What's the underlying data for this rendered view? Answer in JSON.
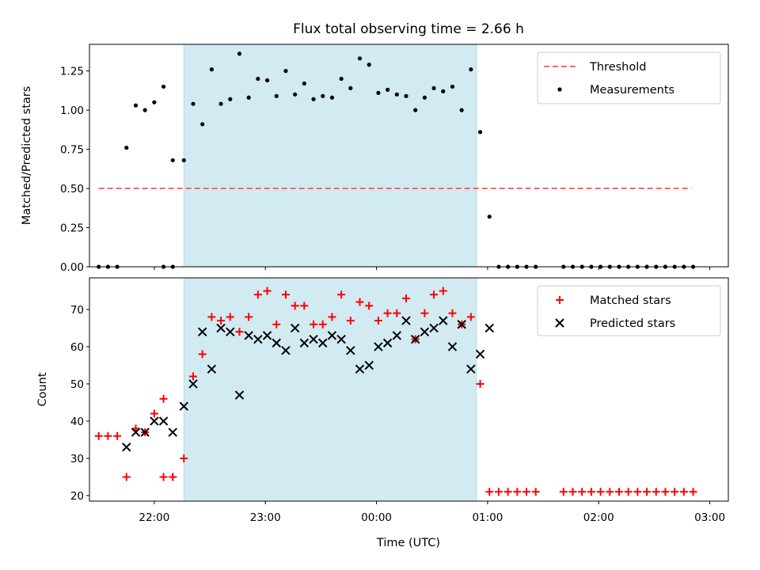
{
  "chart_data": {
    "title": "Flux total observing time = 2.66 h",
    "xlabel": "Time (UTC)",
    "x_ticks": [
      "22:00",
      "23:00",
      "00:00",
      "01:00",
      "02:00",
      "03:00"
    ],
    "x_range": [
      "21:25",
      "03:10"
    ],
    "highlight_span": {
      "start": "22:16",
      "end": "00:54",
      "color": "#add8e6"
    },
    "panels": [
      {
        "type": "scatter",
        "ylabel": "Matched/Predicted stars",
        "ylim": [
          0,
          1.42
        ],
        "y_ticks": [
          0.0,
          0.25,
          0.5,
          0.75,
          1.0,
          1.25
        ],
        "threshold": {
          "name": "Threshold",
          "value": 0.5,
          "x_start": "21:30",
          "x_end": "02:50",
          "color": "#ff6666"
        },
        "series": [
          {
            "name": "Measurements",
            "color": "#000000",
            "points": [
              [
                "21:30",
                0
              ],
              [
                "21:35",
                0
              ],
              [
                "21:40",
                0
              ],
              [
                "21:45",
                0.76
              ],
              [
                "21:50",
                1.03
              ],
              [
                "21:55",
                1.0
              ],
              [
                "22:00",
                1.05
              ],
              [
                "22:05",
                1.15
              ],
              [
                "22:10",
                0.68
              ],
              [
                "22:05",
                0
              ],
              [
                "22:10",
                0
              ],
              [
                "22:16",
                0.68
              ],
              [
                "22:21",
                1.04
              ],
              [
                "22:26",
                0.91
              ],
              [
                "22:31",
                1.26
              ],
              [
                "22:36",
                1.04
              ],
              [
                "22:41",
                1.07
              ],
              [
                "22:46",
                1.36
              ],
              [
                "22:51",
                1.08
              ],
              [
                "22:56",
                1.2
              ],
              [
                "23:01",
                1.19
              ],
              [
                "23:06",
                1.09
              ],
              [
                "23:11",
                1.25
              ],
              [
                "23:16",
                1.1
              ],
              [
                "23:21",
                1.17
              ],
              [
                "23:26",
                1.07
              ],
              [
                "23:31",
                1.09
              ],
              [
                "23:36",
                1.08
              ],
              [
                "23:41",
                1.2
              ],
              [
                "23:46",
                1.14
              ],
              [
                "23:51",
                1.33
              ],
              [
                "23:56",
                1.29
              ],
              [
                "00:01",
                1.11
              ],
              [
                "00:06",
                1.13
              ],
              [
                "00:11",
                1.1
              ],
              [
                "00:16",
                1.09
              ],
              [
                "00:21",
                1.0
              ],
              [
                "00:26",
                1.08
              ],
              [
                "00:31",
                1.14
              ],
              [
                "00:36",
                1.12
              ],
              [
                "00:41",
                1.15
              ],
              [
                "00:46",
                1.0
              ],
              [
                "00:51",
                1.26
              ],
              [
                "00:56",
                0.86
              ],
              [
                "01:01",
                0.32
              ],
              [
                "01:06",
                0
              ],
              [
                "01:11",
                0
              ],
              [
                "01:16",
                0
              ],
              [
                "01:21",
                0
              ],
              [
                "01:26",
                0
              ],
              [
                "01:41",
                0
              ],
              [
                "01:46",
                0
              ],
              [
                "01:51",
                0
              ],
              [
                "01:56",
                0
              ],
              [
                "02:01",
                0
              ],
              [
                "02:06",
                0
              ],
              [
                "02:11",
                0
              ],
              [
                "02:16",
                0
              ],
              [
                "02:21",
                0
              ],
              [
                "02:26",
                0
              ],
              [
                "02:31",
                0
              ],
              [
                "02:36",
                0
              ],
              [
                "02:41",
                0
              ],
              [
                "02:46",
                0
              ],
              [
                "02:51",
                0
              ]
            ]
          }
        ]
      },
      {
        "type": "scatter",
        "ylabel": "Count",
        "ylim": [
          18.5,
          78.5
        ],
        "y_ticks": [
          20,
          30,
          40,
          50,
          60,
          70
        ],
        "series": [
          {
            "name": "Matched stars",
            "color": "#ff0000",
            "points": [
              [
                "21:30",
                36
              ],
              [
                "21:35",
                36
              ],
              [
                "21:40",
                36
              ],
              [
                "21:45",
                25
              ],
              [
                "21:50",
                38
              ],
              [
                "21:55",
                37
              ],
              [
                "22:00",
                42
              ],
              [
                "22:05",
                46
              ],
              [
                "22:10",
                25
              ],
              [
                "22:05",
                25
              ],
              [
                "22:10",
                25
              ],
              [
                "22:16",
                30
              ],
              [
                "22:21",
                52
              ],
              [
                "22:26",
                58
              ],
              [
                "22:31",
                68
              ],
              [
                "22:36",
                67
              ],
              [
                "22:41",
                68
              ],
              [
                "22:46",
                64
              ],
              [
                "22:51",
                68
              ],
              [
                "22:56",
                74
              ],
              [
                "23:01",
                75
              ],
              [
                "23:06",
                66
              ],
              [
                "23:11",
                74
              ],
              [
                "23:16",
                71
              ],
              [
                "23:21",
                71
              ],
              [
                "23:26",
                66
              ],
              [
                "23:31",
                66
              ],
              [
                "23:36",
                68
              ],
              [
                "23:41",
                74
              ],
              [
                "23:46",
                67
              ],
              [
                "23:51",
                72
              ],
              [
                "23:56",
                71
              ],
              [
                "00:01",
                67
              ],
              [
                "00:06",
                69
              ],
              [
                "00:11",
                69
              ],
              [
                "00:16",
                73
              ],
              [
                "00:21",
                62
              ],
              [
                "00:26",
                69
              ],
              [
                "00:31",
                74
              ],
              [
                "00:36",
                75
              ],
              [
                "00:41",
                69
              ],
              [
                "00:46",
                66
              ],
              [
                "00:51",
                68
              ],
              [
                "00:56",
                50
              ],
              [
                "01:01",
                21
              ],
              [
                "01:06",
                21
              ],
              [
                "01:11",
                21
              ],
              [
                "01:16",
                21
              ],
              [
                "01:21",
                21
              ],
              [
                "01:26",
                21
              ],
              [
                "01:41",
                21
              ],
              [
                "01:46",
                21
              ],
              [
                "01:51",
                21
              ],
              [
                "01:56",
                21
              ],
              [
                "02:01",
                21
              ],
              [
                "02:06",
                21
              ],
              [
                "02:11",
                21
              ],
              [
                "02:16",
                21
              ],
              [
                "02:21",
                21
              ],
              [
                "02:26",
                21
              ],
              [
                "02:31",
                21
              ],
              [
                "02:36",
                21
              ],
              [
                "02:41",
                21
              ],
              [
                "02:46",
                21
              ],
              [
                "02:51",
                21
              ]
            ]
          },
          {
            "name": "Predicted stars",
            "color": "#000000",
            "points": [
              [
                "21:45",
                33
              ],
              [
                "21:50",
                37
              ],
              [
                "21:55",
                37
              ],
              [
                "22:00",
                40
              ],
              [
                "22:05",
                40
              ],
              [
                "22:10",
                37
              ],
              [
                "22:16",
                44
              ],
              [
                "22:21",
                50
              ],
              [
                "22:26",
                64
              ],
              [
                "22:31",
                54
              ],
              [
                "22:36",
                65
              ],
              [
                "22:41",
                64
              ],
              [
                "22:46",
                47
              ],
              [
                "22:51",
                63
              ],
              [
                "22:56",
                62
              ],
              [
                "23:01",
                63
              ],
              [
                "23:06",
                61
              ],
              [
                "23:11",
                59
              ],
              [
                "23:16",
                65
              ],
              [
                "23:21",
                61
              ],
              [
                "23:26",
                62
              ],
              [
                "23:31",
                61
              ],
              [
                "23:36",
                63
              ],
              [
                "23:41",
                62
              ],
              [
                "23:46",
                59
              ],
              [
                "23:51",
                54
              ],
              [
                "23:56",
                55
              ],
              [
                "00:01",
                60
              ],
              [
                "00:06",
                61
              ],
              [
                "00:11",
                63
              ],
              [
                "00:16",
                67
              ],
              [
                "00:21",
                62
              ],
              [
                "00:26",
                64
              ],
              [
                "00:31",
                65
              ],
              [
                "00:36",
                67
              ],
              [
                "00:41",
                60
              ],
              [
                "00:46",
                66
              ],
              [
                "00:51",
                54
              ],
              [
                "00:56",
                58
              ],
              [
                "01:01",
                65
              ]
            ]
          }
        ]
      }
    ]
  }
}
